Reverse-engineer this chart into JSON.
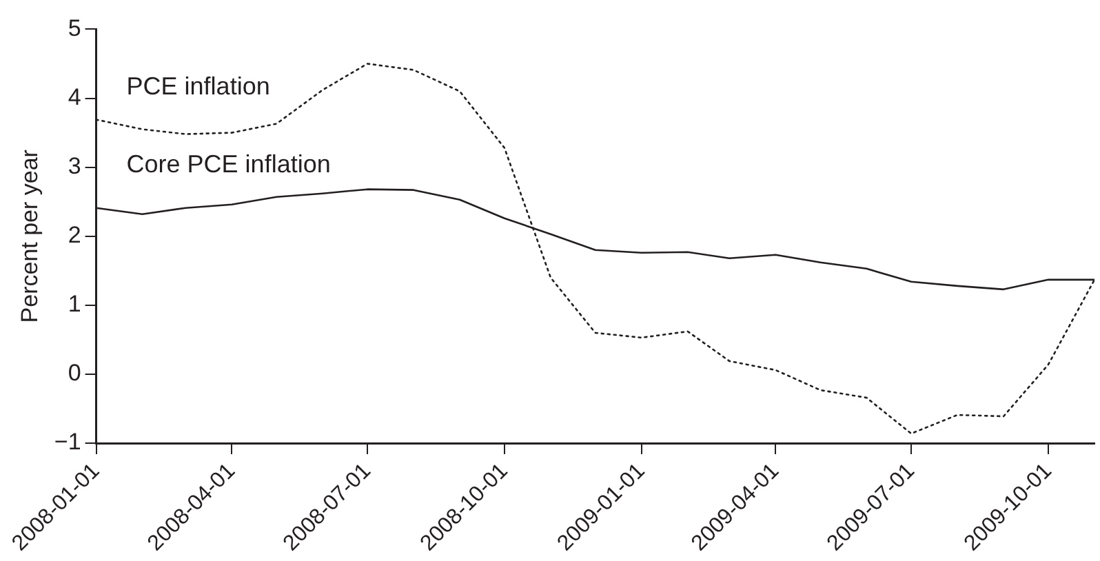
{
  "chart_data": {
    "type": "line",
    "ylabel": "Percent per year",
    "x": [
      "2008-01",
      "2008-02",
      "2008-03",
      "2008-04",
      "2008-05",
      "2008-06",
      "2008-07",
      "2008-08",
      "2008-09",
      "2008-10",
      "2008-11",
      "2008-12",
      "2009-01",
      "2009-02",
      "2009-03",
      "2009-04",
      "2009-05",
      "2009-06",
      "2009-07",
      "2009-08",
      "2009-09",
      "2009-10",
      "2009-11"
    ],
    "series": [
      {
        "name": "PCE inflation",
        "color": "#231f20",
        "line_style": "dotted",
        "values": [
          3.69,
          3.55,
          3.48,
          3.5,
          3.63,
          4.12,
          4.5,
          4.41,
          4.1,
          3.28,
          1.4,
          0.6,
          0.53,
          0.62,
          0.19,
          0.06,
          -0.23,
          -0.34,
          -0.86,
          -0.59,
          -0.61,
          0.14,
          1.37
        ]
      },
      {
        "name": "Core PCE inflation",
        "color": "#231f20",
        "line_style": "solid",
        "values": [
          2.41,
          2.32,
          2.41,
          2.46,
          2.57,
          2.62,
          2.68,
          2.67,
          2.53,
          2.26,
          2.03,
          1.8,
          1.76,
          1.77,
          1.68,
          1.73,
          1.62,
          1.53,
          1.34,
          1.28,
          1.23,
          1.37,
          1.37
        ]
      }
    ],
    "xlim": [
      "2008-01-01",
      "2009-11-01"
    ],
    "xticks": [
      "2008-01-01",
      "2008-04-01",
      "2008-07-01",
      "2008-10-01",
      "2009-01-01",
      "2009-04-01",
      "2009-07-01",
      "2009-10-01"
    ],
    "ylim": [
      -1,
      5
    ],
    "yticks": [
      -1,
      0,
      1,
      2,
      3,
      4,
      5
    ],
    "grid": false,
    "legend": false,
    "marker": "none"
  }
}
